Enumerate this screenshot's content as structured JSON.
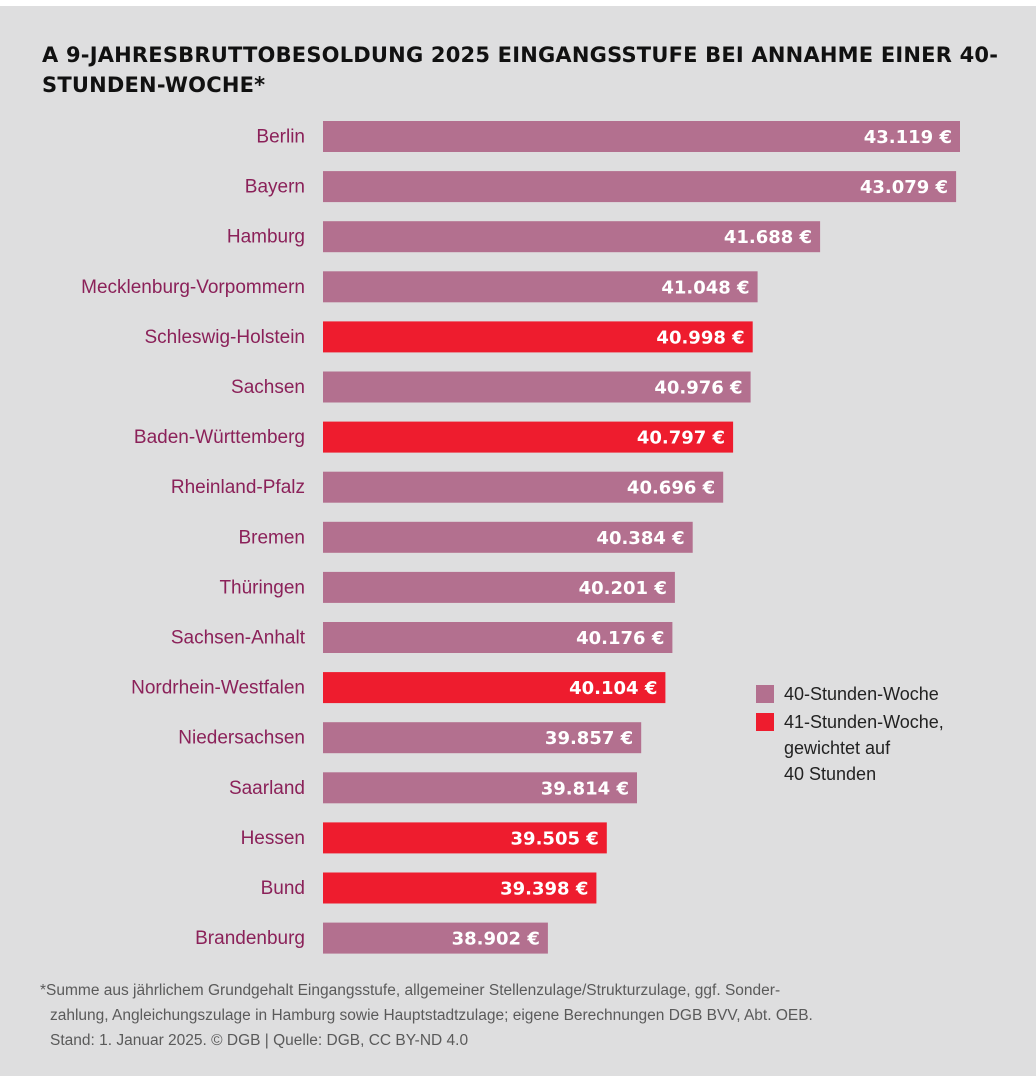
{
  "chart_data": {
    "type": "bar",
    "orientation": "horizontal",
    "title": "A 9-JAHRESBRUTTOBESOLDUNG 2025 EINGANGSSTUFE BEI ANNAHME EINER 40-STUNDEN-WOCHE*",
    "categories": [
      "Berlin",
      "Bayern",
      "Hamburg",
      "Mecklenburg-Vorpommern",
      "Schleswig-Holstein",
      "Sachsen",
      "Baden-Württemberg",
      "Rheinland-Pfalz",
      "Bremen",
      "Thüringen",
      "Sachsen-Anhalt",
      "Nordrhein-Westfalen",
      "Niedersachsen",
      "Saarland",
      "Hessen",
      "Bund",
      "Brandenburg"
    ],
    "values": [
      43119,
      43079,
      41688,
      41048,
      40998,
      40976,
      40797,
      40696,
      40384,
      40201,
      40176,
      40104,
      39857,
      39814,
      39505,
      39398,
      38902
    ],
    "value_labels": [
      "43.119 €",
      "43.079 €",
      "41.688 €",
      "41.048 €",
      "40.998 €",
      "40.976 €",
      "40.797 €",
      "40.696 €",
      "40.384 €",
      "40.201 €",
      "40.176 €",
      "40.104 €",
      "39.857 €",
      "39.814 €",
      "39.505 €",
      "39.398 €",
      "38.902 €"
    ],
    "groups": [
      "40",
      "40",
      "40",
      "40",
      "41",
      "40",
      "41",
      "40",
      "40",
      "40",
      "40",
      "41",
      "40",
      "40",
      "41",
      "41",
      "40"
    ],
    "series": [
      {
        "key": "40",
        "name": "40-Stunden-Woche",
        "color": "#b3708f"
      },
      {
        "key": "41",
        "name": "41-Stunden-Woche,\ngewichtet auf\n40 Stunden",
        "color": "#ee1c2e"
      }
    ],
    "xlim": [
      36600,
      43150
    ],
    "grid": false,
    "legend_position": "right"
  },
  "colors": {
    "background": "#dededf",
    "category_label": "#8b2159",
    "value_label": "#ffffff"
  },
  "footnote": {
    "lines": [
      "*Summe aus jährlichem Grundgehalt Eingangsstufe, allgemeiner Stellenzulage/Strukturzulage, ggf. Sonder-",
      "zahlung, Angleichungszulage in Hamburg sowie Hauptstadtzulage; eigene Berechnungen DGB BVV, Abt. OEB.",
      "Stand: 1. Januar 2025. © DGB | Quelle: DGB, CC BY-ND 4.0"
    ]
  }
}
